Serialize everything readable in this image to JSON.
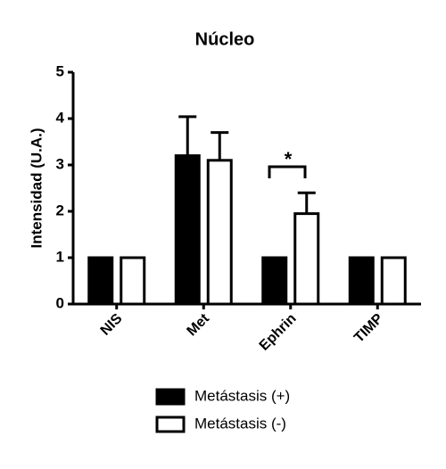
{
  "chart_data": {
    "type": "bar",
    "title": "Núcleo",
    "y_label": "Intensidad (U.A.)",
    "categories": [
      "NIS",
      "Met",
      "Ephrin",
      "TIMP"
    ],
    "series": [
      {
        "name": "Metástasis (+)",
        "color": "#000000",
        "values": [
          1,
          3.2,
          1,
          1
        ],
        "errors": [
          null,
          0.84,
          null,
          null
        ]
      },
      {
        "name": "Metástasis (-)",
        "color": "#ffffff",
        "values": [
          1,
          3.1,
          1.95,
          1
        ],
        "errors": [
          null,
          0.6,
          0.45,
          null
        ]
      }
    ],
    "annotation": "*",
    "ylim": [
      0,
      5
    ],
    "yticks": [
      0,
      1,
      2,
      3,
      4,
      5
    ],
    "grid": false
  }
}
